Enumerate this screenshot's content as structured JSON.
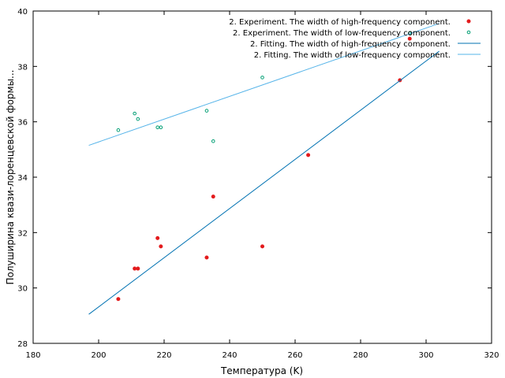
{
  "chart_data": {
    "type": "scatter",
    "xlabel": "Температура (K)",
    "ylabel": "Полуширина квази-лоренцевской формы...",
    "xlim": [
      180,
      320
    ],
    "ylim": [
      28,
      40
    ],
    "xticks": [
      180,
      200,
      220,
      240,
      260,
      280,
      300,
      320
    ],
    "yticks": [
      28,
      30,
      32,
      34,
      36,
      38,
      40
    ],
    "grid": false,
    "legend_position": "top-right",
    "series": [
      {
        "name": "2. Experiment. The width of high-frequency component.",
        "kind": "points",
        "marker": "filled-circle",
        "color": "#e31a1c",
        "points": [
          {
            "x": 206,
            "y": 29.6
          },
          {
            "x": 211,
            "y": 30.7
          },
          {
            "x": 212,
            "y": 30.7
          },
          {
            "x": 218,
            "y": 31.8
          },
          {
            "x": 219,
            "y": 31.5
          },
          {
            "x": 233,
            "y": 31.1
          },
          {
            "x": 235,
            "y": 33.3
          },
          {
            "x": 250,
            "y": 31.5
          },
          {
            "x": 264,
            "y": 34.8
          },
          {
            "x": 292,
            "y": 37.5
          },
          {
            "x": 295,
            "y": 39.0
          }
        ]
      },
      {
        "name": "2. Experiment. The width of low-frequency component.",
        "kind": "points",
        "marker": "open-circle",
        "color": "#009e73",
        "points": [
          {
            "x": 206,
            "y": 35.7
          },
          {
            "x": 211,
            "y": 36.3
          },
          {
            "x": 212,
            "y": 36.1
          },
          {
            "x": 218,
            "y": 35.8
          },
          {
            "x": 219,
            "y": 35.8
          },
          {
            "x": 233,
            "y": 36.4
          },
          {
            "x": 235,
            "y": 35.3
          },
          {
            "x": 250,
            "y": 37.6
          },
          {
            "x": 295,
            "y": 39.2
          }
        ]
      },
      {
        "name": "2. Fitting. The width of high-frequency component.",
        "kind": "line",
        "color": "#0072b2",
        "points": [
          {
            "x": 197,
            "y": 29.05
          },
          {
            "x": 304,
            "y": 38.55
          }
        ]
      },
      {
        "name": "2. Fitting. The width of low-frequency component.",
        "kind": "line",
        "color": "#56b4e9",
        "points": [
          {
            "x": 197,
            "y": 35.15
          },
          {
            "x": 304,
            "y": 39.55
          }
        ]
      }
    ]
  }
}
